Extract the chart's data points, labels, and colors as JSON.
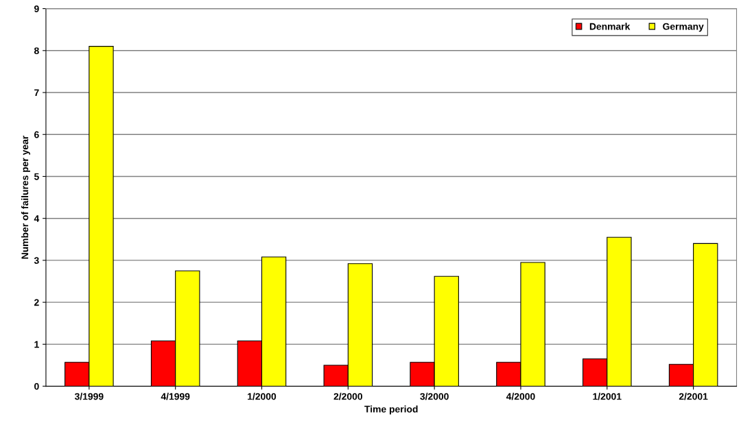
{
  "chart_data": {
    "type": "bar",
    "xlabel": "Time period",
    "ylabel": "Number of failures per year",
    "categories": [
      "3/1999",
      "4/1999",
      "1/2000",
      "2/2000",
      "3/2000",
      "4/2000",
      "1/2001",
      "2/2001"
    ],
    "series": [
      {
        "name": "Denmark",
        "color": "#ff0000",
        "values": [
          0.57,
          1.08,
          1.08,
          0.5,
          0.57,
          0.57,
          0.65,
          0.52
        ]
      },
      {
        "name": "Germany",
        "color": "#ffff00",
        "values": [
          8.1,
          2.75,
          3.08,
          2.92,
          2.62,
          2.95,
          3.55,
          3.4
        ]
      }
    ],
    "ylim": [
      0,
      9
    ],
    "yticks": [
      0,
      1,
      2,
      3,
      4,
      5,
      6,
      7,
      8,
      9
    ],
    "grid": "y",
    "legend": "top right"
  }
}
